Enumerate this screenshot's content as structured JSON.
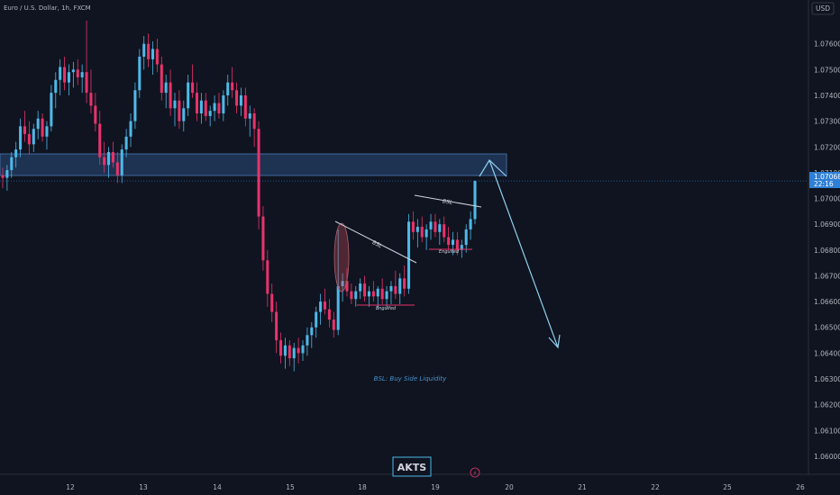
{
  "header": {
    "symbol_title": "Euro / U.S. Dollar, 1h, FXCM",
    "currency": "USD"
  },
  "price_tag": {
    "price": "1.07068",
    "countdown": "22:16"
  },
  "colors": {
    "background": "#0f1420",
    "bull": "#4fb8e8",
    "bear": "#e8336b",
    "zone_fill": "#2b4a7a",
    "arrow": "#8fd0ee",
    "tag_bg": "#2f7fd6"
  },
  "watermark": {
    "logo_text": "AKTS"
  },
  "annotations": {
    "bsl_label_1": "BSL",
    "bsl_label_2": "BSL",
    "engulfed_1": "Engulfed",
    "engulfed_2": "Engulfed",
    "legend_note": "BSL: Buy Side Liquidity"
  },
  "icons": {
    "watermark_bolt": "lightning-bolt-icon"
  },
  "chart_data": {
    "type": "candlestick",
    "title": "Euro / U.S. Dollar, 1h, FXCM",
    "y_unit": "USD",
    "ylim": [
      1.0593,
      1.0777
    ],
    "y_ticks": [
      "1.07600",
      "1.07500",
      "1.07400",
      "1.07300",
      "1.07200",
      "1.07100",
      "1.07000",
      "1.06900",
      "1.06800",
      "1.06700",
      "1.06600",
      "1.06500",
      "1.06400",
      "1.06300",
      "1.06200",
      "1.06100",
      "1.06000"
    ],
    "x_ticks": [
      "12",
      "13",
      "14",
      "15",
      "18",
      "19",
      "20",
      "21",
      "22",
      "25",
      "26"
    ],
    "grid": false,
    "last_price": 1.07068,
    "candles": [
      [
        1.0709,
        1.0712,
        1.0704,
        1.0708
      ],
      [
        1.0708,
        1.0713,
        1.0703,
        1.0711
      ],
      [
        1.0711,
        1.0718,
        1.0708,
        1.0716
      ],
      [
        1.0716,
        1.0722,
        1.0712,
        1.0719
      ],
      [
        1.0719,
        1.0731,
        1.0716,
        1.0728
      ],
      [
        1.0728,
        1.0734,
        1.0722,
        1.0725
      ],
      [
        1.0725,
        1.073,
        1.0717,
        1.0721
      ],
      [
        1.0721,
        1.0729,
        1.0718,
        1.0727
      ],
      [
        1.0727,
        1.0734,
        1.0723,
        1.0731
      ],
      [
        1.0731,
        1.0733,
        1.0722,
        1.0724
      ],
      [
        1.0724,
        1.073,
        1.0719,
        1.0728
      ],
      [
        1.0728,
        1.0744,
        1.0726,
        1.0741
      ],
      [
        1.0741,
        1.0749,
        1.0735,
        1.0746
      ],
      [
        1.0746,
        1.0754,
        1.074,
        1.0751
      ],
      [
        1.0751,
        1.0755,
        1.0742,
        1.0745
      ],
      [
        1.0745,
        1.0752,
        1.074,
        1.0749
      ],
      [
        1.0749,
        1.0753,
        1.0743,
        1.075
      ],
      [
        1.075,
        1.0754,
        1.0744,
        1.0747
      ],
      [
        1.0747,
        1.0752,
        1.0741,
        1.0749
      ],
      [
        1.0749,
        1.0769,
        1.0737,
        1.0741
      ],
      [
        1.0741,
        1.075,
        1.0733,
        1.0736
      ],
      [
        1.0736,
        1.0741,
        1.0726,
        1.0729
      ],
      [
        1.0729,
        1.0734,
        1.0713,
        1.0716
      ],
      [
        1.0716,
        1.0722,
        1.071,
        1.0713
      ],
      [
        1.0713,
        1.072,
        1.0708,
        1.0718
      ],
      [
        1.0718,
        1.0722,
        1.0712,
        1.0714
      ],
      [
        1.0714,
        1.0718,
        1.0706,
        1.0709
      ],
      [
        1.0709,
        1.0721,
        1.0706,
        1.0719
      ],
      [
        1.0719,
        1.0727,
        1.0716,
        1.0724
      ],
      [
        1.0724,
        1.0733,
        1.072,
        1.073
      ],
      [
        1.073,
        1.0745,
        1.0727,
        1.0742
      ],
      [
        1.0742,
        1.0758,
        1.0739,
        1.0755
      ],
      [
        1.0755,
        1.0763,
        1.075,
        1.076
      ],
      [
        1.076,
        1.0764,
        1.0751,
        1.0754
      ],
      [
        1.0754,
        1.0761,
        1.0748,
        1.0758
      ],
      [
        1.0758,
        1.0762,
        1.0749,
        1.0752
      ],
      [
        1.0752,
        1.0755,
        1.0738,
        1.0741
      ],
      [
        1.0741,
        1.0748,
        1.0735,
        1.0745
      ],
      [
        1.0745,
        1.075,
        1.0732,
        1.0735
      ],
      [
        1.0735,
        1.0741,
        1.0728,
        1.0738
      ],
      [
        1.0738,
        1.0742,
        1.0727,
        1.073
      ],
      [
        1.073,
        1.0738,
        1.0726,
        1.0735
      ],
      [
        1.0735,
        1.0748,
        1.0732,
        1.0745
      ],
      [
        1.0745,
        1.0752,
        1.0739,
        1.0741
      ],
      [
        1.0741,
        1.0745,
        1.073,
        1.0733
      ],
      [
        1.0733,
        1.0741,
        1.0729,
        1.0738
      ],
      [
        1.0738,
        1.0741,
        1.073,
        1.0732
      ],
      [
        1.0732,
        1.0736,
        1.0728,
        1.0734
      ],
      [
        1.0734,
        1.074,
        1.073,
        1.0737
      ],
      [
        1.0737,
        1.0741,
        1.0731,
        1.0733
      ],
      [
        1.0733,
        1.0742,
        1.073,
        1.074
      ],
      [
        1.074,
        1.0748,
        1.0736,
        1.0745
      ],
      [
        1.0745,
        1.0751,
        1.0739,
        1.0742
      ],
      [
        1.0742,
        1.0745,
        1.0733,
        1.0736
      ],
      [
        1.0736,
        1.0743,
        1.0732,
        1.074
      ],
      [
        1.074,
        1.0743,
        1.0728,
        1.0731
      ],
      [
        1.0731,
        1.0736,
        1.0724,
        1.0733
      ],
      [
        1.0733,
        1.0735,
        1.072,
        1.0727
      ],
      [
        1.0727,
        1.073,
        1.0688,
        1.0693
      ],
      [
        1.0693,
        1.0697,
        1.0672,
        1.0676
      ],
      [
        1.0676,
        1.068,
        1.0658,
        1.0663
      ],
      [
        1.0663,
        1.0667,
        1.0652,
        1.0656
      ],
      [
        1.0656,
        1.066,
        1.064,
        1.0645
      ],
      [
        1.0645,
        1.0648,
        1.0636,
        1.0639
      ],
      [
        1.0639,
        1.0646,
        1.0634,
        1.0643
      ],
      [
        1.0643,
        1.0645,
        1.0635,
        1.0638
      ],
      [
        1.0638,
        1.0644,
        1.0633,
        1.0642
      ],
      [
        1.0642,
        1.0646,
        1.0636,
        1.064
      ],
      [
        1.064,
        1.0645,
        1.0637,
        1.0643
      ],
      [
        1.0643,
        1.065,
        1.0639,
        1.0647
      ],
      [
        1.0647,
        1.0652,
        1.0642,
        1.065
      ],
      [
        1.065,
        1.0658,
        1.0646,
        1.0656
      ],
      [
        1.0656,
        1.0663,
        1.0651,
        1.066
      ],
      [
        1.066,
        1.0665,
        1.0655,
        1.0657
      ],
      [
        1.0657,
        1.0661,
        1.065,
        1.0653
      ],
      [
        1.0653,
        1.0656,
        1.0646,
        1.0649
      ],
      [
        1.0649,
        1.0688,
        1.0647,
        1.0666
      ],
      [
        1.0666,
        1.0671,
        1.066,
        1.0668
      ],
      [
        1.0668,
        1.0673,
        1.0662,
        1.0664
      ],
      [
        1.0664,
        1.0667,
        1.0659,
        1.0661
      ],
      [
        1.0661,
        1.0666,
        1.0658,
        1.0664
      ],
      [
        1.0664,
        1.0669,
        1.0661,
        1.0667
      ],
      [
        1.0667,
        1.067,
        1.066,
        1.0662
      ],
      [
        1.0662,
        1.0666,
        1.0658,
        1.0664
      ],
      [
        1.0664,
        1.0668,
        1.066,
        1.0662
      ],
      [
        1.0662,
        1.0666,
        1.0657,
        1.0665
      ],
      [
        1.0665,
        1.0669,
        1.0659,
        1.0661
      ],
      [
        1.0661,
        1.0666,
        1.0657,
        1.0664
      ],
      [
        1.0664,
        1.0668,
        1.0659,
        1.0666
      ],
      [
        1.0666,
        1.0672,
        1.0661,
        1.0663
      ],
      [
        1.0663,
        1.0671,
        1.0659,
        1.0669
      ],
      [
        1.0669,
        1.0674,
        1.0662,
        1.0665
      ],
      [
        1.0665,
        1.0694,
        1.0663,
        1.0691
      ],
      [
        1.0691,
        1.0695,
        1.0684,
        1.0687
      ],
      [
        1.0687,
        1.0692,
        1.0681,
        1.0689
      ],
      [
        1.0689,
        1.0693,
        1.0683,
        1.0685
      ],
      [
        1.0685,
        1.069,
        1.068,
        1.0688
      ],
      [
        1.0688,
        1.0694,
        1.0684,
        1.0691
      ],
      [
        1.0691,
        1.0694,
        1.0685,
        1.0687
      ],
      [
        1.0687,
        1.0692,
        1.0682,
        1.069
      ],
      [
        1.069,
        1.0693,
        1.0683,
        1.0685
      ],
      [
        1.0685,
        1.0689,
        1.068,
        1.0682
      ],
      [
        1.0682,
        1.0687,
        1.0678,
        1.0684
      ],
      [
        1.0684,
        1.0687,
        1.0678,
        1.068
      ],
      [
        1.068,
        1.0684,
        1.0677,
        1.0682
      ],
      [
        1.0682,
        1.069,
        1.0679,
        1.0688
      ],
      [
        1.0688,
        1.0695,
        1.0684,
        1.0692
      ],
      [
        1.0692,
        1.0707,
        1.069,
        1.07068
      ]
    ]
  }
}
